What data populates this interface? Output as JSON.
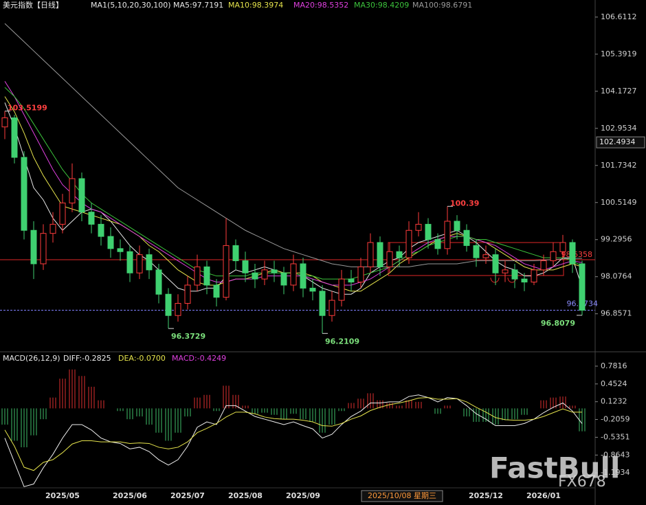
{
  "chart_data": [
    {
      "type": "candlestick",
      "title": "美元指数【日线】",
      "subtitle": "MA1(5,10,20,30,100)",
      "categories": [
        null,
        null,
        null,
        null,
        null,
        null,
        "2025/05",
        null,
        null,
        null,
        null,
        null,
        null,
        "2025/06",
        null,
        null,
        null,
        null,
        null,
        "2025/07",
        null,
        null,
        null,
        null,
        null,
        "2025/08",
        null,
        null,
        null,
        null,
        null,
        "2025/09",
        null,
        null,
        null,
        null,
        null,
        null,
        null,
        null,
        null,
        null,
        null,
        null,
        null,
        null,
        null,
        null,
        null,
        null,
        "2025/12",
        null,
        null,
        null,
        null,
        null,
        "2026/01",
        null,
        null,
        null,
        null
      ],
      "candles": [
        [
          103.0,
          103.52,
          102.6,
          103.3
        ],
        [
          103.3,
          103.4,
          101.8,
          102.0
        ],
        [
          102.0,
          102.2,
          99.3,
          99.6
        ],
        [
          99.6,
          99.9,
          98.0,
          98.5
        ],
        [
          98.5,
          99.8,
          98.3,
          99.5
        ],
        [
          99.5,
          100.2,
          99.2,
          99.8
        ],
        [
          99.8,
          100.8,
          99.5,
          100.5
        ],
        [
          100.5,
          101.8,
          100.2,
          101.3
        ],
        [
          101.3,
          101.5,
          99.9,
          100.2
        ],
        [
          100.2,
          100.5,
          99.5,
          99.8
        ],
        [
          99.8,
          100.1,
          99.1,
          99.4
        ],
        [
          99.4,
          99.7,
          98.7,
          99.0
        ],
        [
          99.0,
          99.3,
          98.6,
          98.9
        ],
        [
          98.9,
          99.1,
          97.9,
          98.2
        ],
        [
          98.2,
          99.1,
          98.0,
          98.8
        ],
        [
          98.8,
          99.0,
          98.0,
          98.3
        ],
        [
          98.3,
          98.5,
          97.2,
          97.5
        ],
        [
          97.5,
          97.7,
          96.3729,
          96.8
        ],
        [
          96.8,
          97.5,
          96.6,
          97.2
        ],
        [
          97.2,
          98.1,
          97.0,
          97.8
        ],
        [
          97.8,
          98.8,
          97.6,
          98.4
        ],
        [
          98.4,
          98.6,
          97.5,
          97.8
        ],
        [
          97.8,
          98.0,
          97.1,
          97.4
        ],
        [
          97.4,
          100.0,
          97.3,
          99.1
        ],
        [
          99.1,
          99.3,
          98.3,
          98.6
        ],
        [
          98.6,
          98.9,
          97.9,
          98.2
        ],
        [
          98.2,
          98.5,
          97.7,
          98.0
        ],
        [
          98.0,
          98.6,
          97.8,
          98.3
        ],
        [
          98.3,
          98.6,
          97.9,
          98.2
        ],
        [
          98.2,
          98.4,
          97.5,
          97.8
        ],
        [
          97.8,
          98.8,
          97.6,
          98.5
        ],
        [
          98.5,
          98.7,
          97.4,
          97.7
        ],
        [
          97.7,
          98.0,
          97.3,
          97.6
        ],
        [
          97.6,
          97.8,
          96.2109,
          96.8
        ],
        [
          96.8,
          97.6,
          96.6,
          97.3
        ],
        [
          97.3,
          98.3,
          97.1,
          98.0
        ],
        [
          98.0,
          98.3,
          97.6,
          97.9
        ],
        [
          97.9,
          98.7,
          97.7,
          98.4
        ],
        [
          98.4,
          99.5,
          98.2,
          99.2
        ],
        [
          99.2,
          99.4,
          98.1,
          98.4
        ],
        [
          98.4,
          99.2,
          98.2,
          98.9
        ],
        [
          98.9,
          99.1,
          98.4,
          98.7
        ],
        [
          98.7,
          99.9,
          98.5,
          99.6
        ],
        [
          99.6,
          100.2,
          99.4,
          99.8
        ],
        [
          99.8,
          100.0,
          99.0,
          99.3
        ],
        [
          99.3,
          99.5,
          98.8,
          99.0
        ],
        [
          99.0,
          100.39,
          98.8,
          99.9
        ],
        [
          99.9,
          100.1,
          99.3,
          99.6
        ],
        [
          99.6,
          99.8,
          98.9,
          99.1
        ],
        [
          99.1,
          99.3,
          98.4,
          98.7
        ],
        [
          98.7,
          99.1,
          98.5,
          98.8
        ],
        [
          98.8,
          99.0,
          97.8,
          98.2
        ],
        [
          98.2,
          98.6,
          97.9,
          98.3
        ],
        [
          98.3,
          98.5,
          97.7,
          98.0
        ],
        [
          98.0,
          98.2,
          97.6,
          97.9
        ],
        [
          97.9,
          98.5,
          97.8,
          98.3
        ],
        [
          98.3,
          98.8,
          98.1,
          98.6
        ],
        [
          98.6,
          99.2,
          98.4,
          98.9
        ],
        [
          98.9,
          99.45,
          98.7,
          99.2
        ],
        [
          99.2,
          99.3,
          98.2,
          98.5
        ],
        [
          98.5,
          98.6,
          96.8079,
          96.9734
        ]
      ],
      "up_color": "#ff3b3b",
      "down_color": "#3fd070",
      "series": [
        {
          "name": "MA5:97.7191",
          "color": "#e8e8e8",
          "values": [
            103.8,
            103.0,
            102.0,
            101.0,
            100.6,
            100.0,
            99.6,
            99.9,
            100.2,
            100.3,
            100.2,
            99.9,
            99.5,
            99.1,
            98.8,
            98.6,
            98.3,
            98.0,
            97.7,
            97.6,
            97.6,
            97.7,
            97.7,
            98.1,
            98.3,
            98.2,
            98.3,
            98.4,
            98.3,
            98.2,
            98.2,
            98.1,
            97.9,
            97.7,
            97.6,
            97.5,
            97.5,
            97.7,
            98.2,
            98.4,
            98.6,
            98.7,
            99.0,
            99.2,
            99.3,
            99.4,
            99.5,
            99.6,
            99.4,
            99.2,
            98.9,
            98.6,
            98.4,
            98.3,
            98.1,
            98.1,
            98.2,
            98.4,
            98.7,
            98.7,
            97.72
          ]
        },
        {
          "name": "MA10:98.3974",
          "color": "#e6e44c",
          "values": [
            104.0,
            103.5,
            102.8,
            102.0,
            101.4,
            100.9,
            100.4,
            100.3,
            100.2,
            100.1,
            100.0,
            99.9,
            99.8,
            99.6,
            99.4,
            99.1,
            98.9,
            98.6,
            98.3,
            98.1,
            97.9,
            97.8,
            97.8,
            97.9,
            98.0,
            98.0,
            98.1,
            98.2,
            98.3,
            98.2,
            98.2,
            98.2,
            98.1,
            97.9,
            97.8,
            97.7,
            97.6,
            97.6,
            97.8,
            98.0,
            98.2,
            98.5,
            98.7,
            98.9,
            99.1,
            99.3,
            99.4,
            99.5,
            99.4,
            99.3,
            99.2,
            99.0,
            98.8,
            98.6,
            98.4,
            98.3,
            98.3,
            98.3,
            98.4,
            98.5,
            98.4
          ]
        },
        {
          "name": "MA20:98.5352",
          "color": "#e040e0",
          "values": [
            104.5,
            104.0,
            103.4,
            102.8,
            102.2,
            101.6,
            101.1,
            100.8,
            100.5,
            100.3,
            100.2,
            100.0,
            99.8,
            99.6,
            99.4,
            99.2,
            99.0,
            98.8,
            98.6,
            98.4,
            98.2,
            98.0,
            97.9,
            97.9,
            98.0,
            98.0,
            98.0,
            98.1,
            98.1,
            98.1,
            98.1,
            98.1,
            98.0,
            97.9,
            97.8,
            97.8,
            97.8,
            97.9,
            98.0,
            98.2,
            98.4,
            98.6,
            98.8,
            99.0,
            99.2,
            99.3,
            99.4,
            99.4,
            99.4,
            99.3,
            99.2,
            99.1,
            98.9,
            98.7,
            98.5,
            98.4,
            98.3,
            98.4,
            98.5,
            98.6,
            98.54
          ]
        },
        {
          "name": "MA30:98.4209",
          "color": "#3cc43c",
          "values": [
            104.3,
            104.0,
            103.6,
            103.1,
            102.6,
            102.1,
            101.6,
            101.2,
            100.8,
            100.5,
            100.3,
            100.1,
            99.9,
            99.7,
            99.5,
            99.3,
            99.1,
            98.9,
            98.7,
            98.5,
            98.3,
            98.2,
            98.1,
            98.1,
            98.1,
            98.1,
            98.2,
            98.2,
            98.2,
            98.2,
            98.2,
            98.1,
            98.1,
            98.0,
            98.0,
            98.0,
            98.0,
            98.1,
            98.2,
            98.3,
            98.4,
            98.6,
            98.8,
            98.9,
            99.1,
            99.2,
            99.3,
            99.4,
            99.4,
            99.3,
            99.3,
            99.2,
            99.1,
            99.0,
            98.9,
            98.8,
            98.7,
            98.7,
            98.7,
            98.6,
            98.42
          ]
        },
        {
          "name": "MA100:98.6791",
          "color": "#9a9a9a",
          "values": [
            106.4,
            106.1,
            105.8,
            105.5,
            105.2,
            104.9,
            104.6,
            104.3,
            104.0,
            103.7,
            103.4,
            103.1,
            102.8,
            102.5,
            102.2,
            101.9,
            101.6,
            101.3,
            101.0,
            100.8,
            100.6,
            100.4,
            100.2,
            100.0,
            99.8,
            99.6,
            99.45,
            99.3,
            99.15,
            99.0,
            98.9,
            98.8,
            98.7,
            98.6,
            98.5,
            98.45,
            98.4,
            98.4,
            98.4,
            98.4,
            98.4,
            98.4,
            98.4,
            98.45,
            98.5,
            98.5,
            98.5,
            98.5,
            98.55,
            98.6,
            98.6,
            98.6,
            98.6,
            98.6,
            98.6,
            98.6,
            98.62,
            98.64,
            98.66,
            98.68,
            98.68
          ]
        }
      ],
      "ylim": [
        95.653,
        106.834
      ],
      "yticks": [
        106.6112,
        105.3919,
        104.1727,
        102.9534,
        101.7342,
        100.5149,
        99.2956,
        98.0764,
        96.8571
      ],
      "annotations": [
        103.5199,
        96.3729,
        96.2109,
        100.39,
        96.8079
      ],
      "hline": 98.6358,
      "last_price": 96.9734,
      "crosshair": {
        "x_label": "2025/10/08 星期三",
        "y": 102.4934
      }
    },
    {
      "type": "macd",
      "title": "MACD(26,12,9)",
      "series": [
        {
          "name": "DIFF:-0.2825",
          "color": "#f0f0f0",
          "values": [
            -0.55,
            -1.0,
            -1.45,
            -1.4,
            -1.1,
            -0.85,
            -0.55,
            -0.3,
            -0.3,
            -0.4,
            -0.55,
            -0.62,
            -0.65,
            -0.75,
            -0.72,
            -0.8,
            -0.95,
            -1.05,
            -0.95,
            -0.7,
            -0.35,
            -0.25,
            -0.3,
            0.05,
            0.05,
            -0.05,
            -0.15,
            -0.2,
            -0.25,
            -0.3,
            -0.25,
            -0.32,
            -0.38,
            -0.55,
            -0.48,
            -0.3,
            -0.15,
            -0.05,
            0.1,
            0.1,
            0.12,
            0.12,
            0.22,
            0.25,
            0.2,
            0.12,
            0.2,
            0.18,
            0.05,
            -0.1,
            -0.2,
            -0.32,
            -0.32,
            -0.32,
            -0.28,
            -0.2,
            -0.08,
            0.02,
            0.1,
            -0.05,
            -0.2825
          ]
        },
        {
          "name": "DEA:-0.0700",
          "color": "#e6e44c",
          "values": [
            -0.4,
            -0.7,
            -1.09,
            -1.15,
            -1.0,
            -0.95,
            -0.82,
            -0.66,
            -0.6,
            -0.6,
            -0.62,
            -0.62,
            -0.62,
            -0.65,
            -0.64,
            -0.65,
            -0.72,
            -0.75,
            -0.72,
            -0.62,
            -0.45,
            -0.37,
            -0.28,
            -0.16,
            -0.07,
            -0.07,
            -0.1,
            -0.16,
            -0.19,
            -0.2,
            -0.2,
            -0.22,
            -0.25,
            -0.32,
            -0.33,
            -0.28,
            -0.2,
            -0.14,
            -0.04,
            0.02,
            0.07,
            0.1,
            0.14,
            0.19,
            0.2,
            0.17,
            0.17,
            0.18,
            0.12,
            0.02,
            -0.07,
            -0.17,
            -0.21,
            -0.22,
            -0.22,
            -0.2,
            -0.15,
            -0.08,
            -0.01,
            -0.07,
            -0.07
          ]
        },
        {
          "name": "MACD:-0.4249",
          "color": "#e040e0",
          "values": [
            -0.3,
            -0.6,
            -0.72,
            -0.5,
            -0.2,
            0.2,
            0.55,
            0.72,
            0.6,
            0.4,
            0.15,
            0.0,
            -0.05,
            -0.2,
            -0.15,
            -0.3,
            -0.45,
            -0.6,
            -0.45,
            -0.15,
            0.2,
            0.25,
            -0.05,
            0.42,
            0.25,
            0.05,
            -0.1,
            -0.08,
            -0.12,
            -0.2,
            -0.1,
            -0.2,
            -0.25,
            -0.45,
            -0.3,
            -0.05,
            0.1,
            0.18,
            0.28,
            0.15,
            0.1,
            0.05,
            0.15,
            0.12,
            0.0,
            -0.1,
            0.05,
            0.0,
            -0.15,
            -0.25,
            -0.25,
            -0.3,
            -0.22,
            -0.2,
            -0.12,
            0.0,
            0.15,
            0.2,
            0.22,
            0.05,
            -0.4249
          ]
        }
      ],
      "ylim": [
        -1.573,
        0.946
      ],
      "yticks": [
        0.7816,
        0.4524,
        0.1232,
        -0.2059,
        -0.5351,
        -0.8643,
        -1.1934
      ]
    }
  ],
  "watermark": [
    "FastBull",
    "FX678"
  ]
}
